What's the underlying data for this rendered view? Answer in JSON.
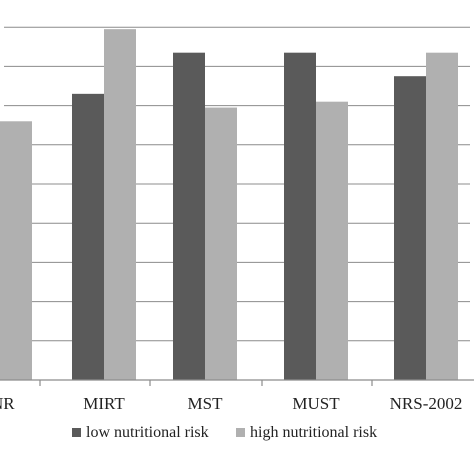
{
  "chart_data": {
    "type": "bar",
    "title": "",
    "xlabel": "",
    "ylabel": "",
    "categories": [
      "-NR",
      "MIRT",
      "MST",
      "MUST",
      "NRS-2002"
    ],
    "series": [
      {
        "name": "low nutritional risk",
        "values": [
          null,
          7.3,
          8.35,
          8.35,
          7.75
        ]
      },
      {
        "name": "high nutritional risk",
        "values": [
          6.6,
          8.95,
          6.95,
          7.1,
          8.35
        ]
      }
    ],
    "ylim": [
      0,
      10
    ],
    "yticks_count": 10,
    "grid": true,
    "legend_position": "bottom",
    "colors": {
      "low nutritional risk": "#5a5a5a",
      "high nutritional risk": "#b0b0b0",
      "gridline": "#8c8c8c",
      "axis": "#8c8c8c"
    }
  }
}
